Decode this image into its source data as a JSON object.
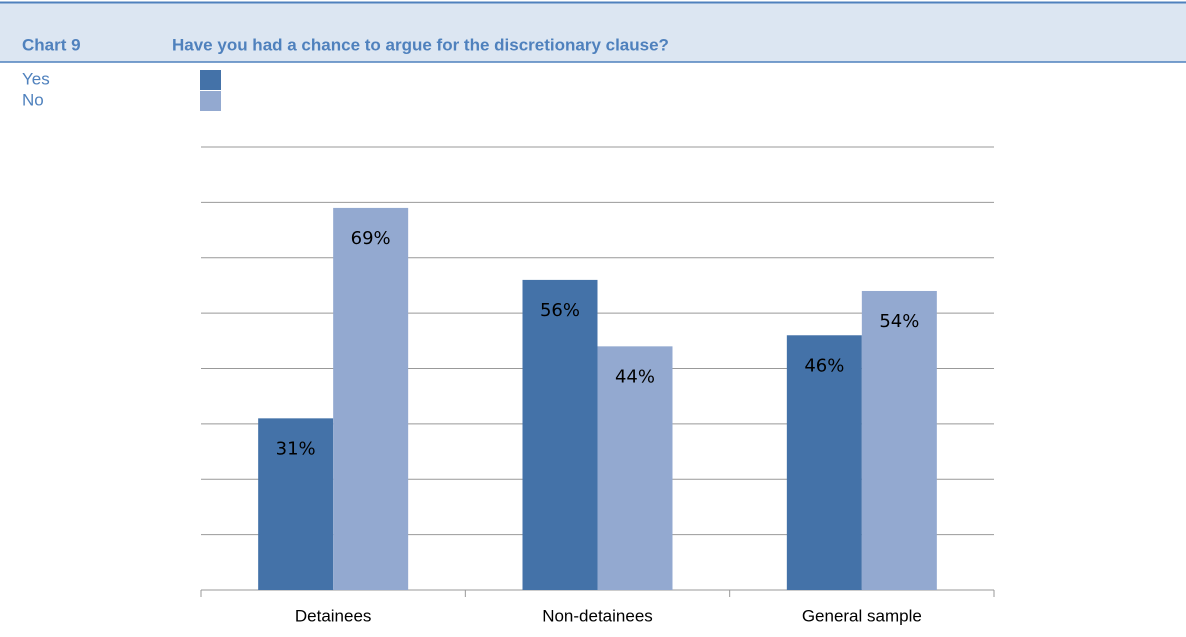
{
  "chart_data": {
    "type": "bar",
    "label": "Chart 9",
    "title": "Have you had a chance to argue for the discretionary clause?",
    "categories": [
      "Detainees",
      "Non-detainees",
      "General sample"
    ],
    "series": [
      {
        "name": "Yes",
        "color": "#4472a8",
        "values": [
          31,
          56,
          46
        ],
        "value_labels": [
          "31%",
          "56%",
          "46%"
        ]
      },
      {
        "name": "No",
        "color": "#93a9d0",
        "values": [
          69,
          44,
          54
        ],
        "value_labels": [
          "69%",
          "44%",
          "54%"
        ]
      }
    ],
    "ylim": [
      0,
      80
    ],
    "yticks": [
      0,
      10,
      20,
      30,
      40,
      50,
      60,
      70,
      80
    ],
    "grid": true
  }
}
